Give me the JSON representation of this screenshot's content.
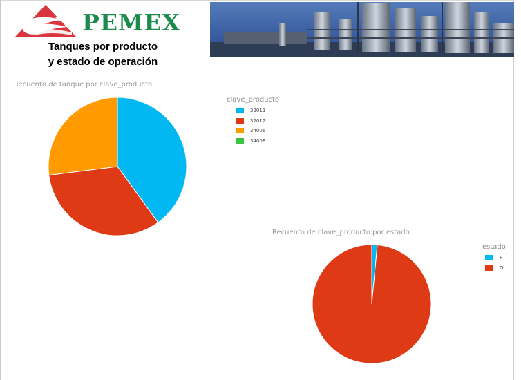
{
  "header": {
    "logo_text": "PEMEX",
    "title_line1": "Tanques por producto",
    "title_line2": "y estado de operación"
  },
  "chart_data": [
    {
      "type": "pie",
      "title": "Recuento de tanque por clave_producto",
      "legend_title": "clave_producto",
      "legend_position": "right",
      "categories": [
        "32011",
        "32012",
        "34006",
        "34008"
      ],
      "values": [
        40,
        33,
        27,
        0
      ],
      "colors": [
        "#01B8F3",
        "#DD3A15",
        "#FF9B00",
        "#3BC53B"
      ]
    },
    {
      "type": "pie",
      "title": "Recuento de clave_producto por estado",
      "legend_title": "estado",
      "legend_position": "right",
      "categories": [
        "F",
        "O"
      ],
      "values": [
        1.5,
        98.5
      ],
      "colors": [
        "#01B8F3",
        "#DD3A15"
      ]
    }
  ]
}
